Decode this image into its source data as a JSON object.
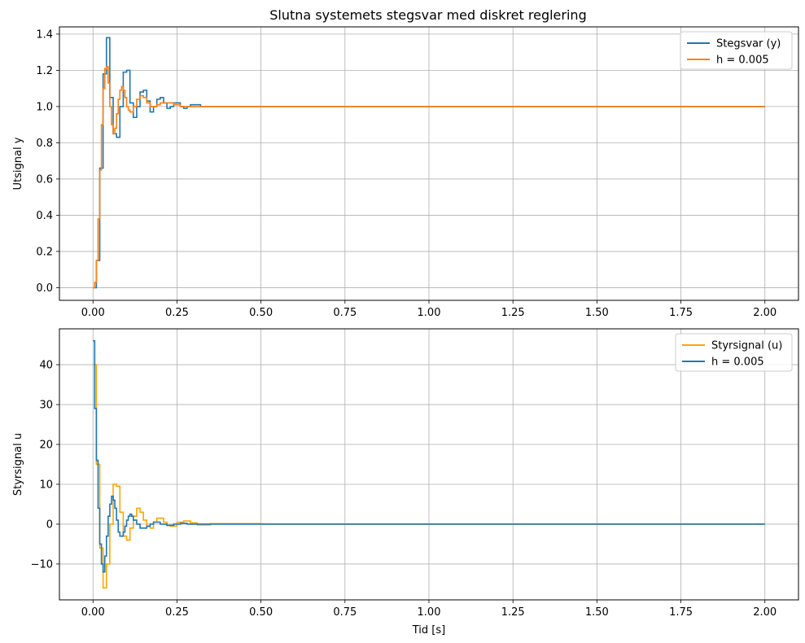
{
  "figure": {
    "title": "Slutna systemets stegsvar med diskret reglering"
  },
  "chart_data": [
    {
      "type": "line",
      "drawstyle": "steps",
      "title": "Slutna systemets stegsvar med diskret reglering",
      "xlabel": "",
      "ylabel": "Utsignal y",
      "xlim": [
        -0.1,
        2.1
      ],
      "ylim": [
        -0.07,
        1.44
      ],
      "xticks": [
        "0.00",
        "0.25",
        "0.50",
        "0.75",
        "1.00",
        "1.25",
        "1.50",
        "1.75",
        "2.00"
      ],
      "yticks": [
        "0.0",
        "0.2",
        "0.4",
        "0.6",
        "0.8",
        "1.0",
        "1.2",
        "1.4"
      ],
      "grid": true,
      "legend_position": "top-right",
      "series": [
        {
          "name": "Stegsvar (y)",
          "color": "#1f77b4",
          "x": [
            0,
            0.01,
            0.02,
            0.03,
            0.04,
            0.05,
            0.06,
            0.07,
            0.08,
            0.09,
            0.1,
            0.11,
            0.12,
            0.13,
            0.14,
            0.15,
            0.16,
            0.17,
            0.18,
            0.19,
            0.2,
            0.21,
            0.22,
            0.23,
            0.24,
            0.25,
            0.26,
            0.27,
            0.28,
            0.29,
            0.3,
            0.32,
            0.34,
            0.36,
            0.4,
            0.45,
            0.5,
            2.0
          ],
          "y": [
            0.0,
            0.15,
            0.66,
            1.18,
            1.38,
            1.05,
            0.85,
            0.83,
            1.0,
            1.19,
            1.2,
            1.02,
            0.94,
            1.0,
            1.08,
            1.09,
            1.03,
            0.97,
            1.0,
            1.04,
            1.05,
            1.02,
            0.99,
            1.0,
            1.02,
            1.02,
            1.0,
            0.99,
            1.0,
            1.01,
            1.01,
            1.0,
            1.0,
            1.0,
            1.0,
            1.0,
            1.0,
            1.0
          ]
        },
        {
          "name": "h = 0.005",
          "color": "#ff7f0e",
          "x": [
            0,
            0.005,
            0.01,
            0.015,
            0.02,
            0.025,
            0.03,
            0.035,
            0.04,
            0.045,
            0.05,
            0.055,
            0.06,
            0.065,
            0.07,
            0.075,
            0.08,
            0.085,
            0.09,
            0.095,
            0.1,
            0.105,
            0.11,
            0.12,
            0.13,
            0.14,
            0.15,
            0.16,
            0.17,
            0.18,
            0.19,
            0.2,
            0.22,
            0.24,
            0.26,
            0.28,
            0.3,
            0.35,
            0.4,
            0.5,
            2.0
          ],
          "y": [
            0.0,
            0.03,
            0.15,
            0.38,
            0.65,
            0.9,
            1.1,
            1.21,
            1.22,
            1.13,
            1.0,
            0.9,
            0.85,
            0.88,
            0.96,
            1.04,
            1.09,
            1.11,
            1.09,
            1.05,
            1.0,
            0.98,
            0.97,
            1.0,
            1.04,
            1.06,
            1.05,
            1.02,
            1.0,
            1.0,
            1.01,
            1.02,
            1.02,
            1.01,
            1.0,
            1.0,
            1.0,
            1.0,
            1.0,
            1.0,
            1.0
          ]
        }
      ]
    },
    {
      "type": "line",
      "drawstyle": "steps",
      "title": "",
      "xlabel": "Tid [s]",
      "ylabel": "Styrsignal u",
      "xlim": [
        -0.1,
        2.1
      ],
      "ylim": [
        -19,
        49
      ],
      "xticks": [
        "0.00",
        "0.25",
        "0.50",
        "0.75",
        "1.00",
        "1.25",
        "1.50",
        "1.75",
        "2.00"
      ],
      "yticks": [
        "−10",
        "0",
        "10",
        "20",
        "30",
        "40"
      ],
      "grid": true,
      "legend_position": "top-right",
      "series": [
        {
          "name": "Styrsignal (u)",
          "color": "#ffa500",
          "x": [
            0,
            0.01,
            0.02,
            0.03,
            0.04,
            0.05,
            0.06,
            0.07,
            0.08,
            0.09,
            0.1,
            0.11,
            0.12,
            0.13,
            0.14,
            0.15,
            0.16,
            0.17,
            0.18,
            0.19,
            0.2,
            0.21,
            0.22,
            0.23,
            0.25,
            0.27,
            0.29,
            0.31,
            0.35,
            0.4,
            0.45,
            0.5,
            2.0
          ],
          "y": [
            40,
            15,
            -6,
            -16,
            -10,
            0,
            10,
            9.5,
            3,
            -3,
            -4,
            -1,
            2,
            4,
            3,
            1,
            -0.5,
            -1,
            0.5,
            1.5,
            1.5,
            0.5,
            -0.3,
            -0.5,
            0.5,
            0.8,
            0.3,
            -0.2,
            0.1,
            0.1,
            0.1,
            0,
            0
          ]
        },
        {
          "name": "h = 0.005",
          "color": "#1f77b4",
          "x": [
            0,
            0.005,
            0.01,
            0.015,
            0.02,
            0.025,
            0.03,
            0.035,
            0.04,
            0.045,
            0.05,
            0.055,
            0.06,
            0.065,
            0.07,
            0.075,
            0.08,
            0.085,
            0.09,
            0.095,
            0.1,
            0.105,
            0.11,
            0.115,
            0.12,
            0.13,
            0.14,
            0.15,
            0.16,
            0.17,
            0.18,
            0.19,
            0.2,
            0.22,
            0.24,
            0.26,
            0.28,
            0.3,
            0.35,
            0.4,
            0.5,
            2.0
          ],
          "y": [
            46,
            29,
            16,
            4,
            -5,
            -10,
            -12,
            -8,
            -3,
            2,
            5,
            7,
            6,
            4,
            1,
            -2,
            -3,
            -3,
            -2,
            -0.5,
            1,
            2,
            2.5,
            2,
            1,
            0,
            -1,
            -1,
            -0.5,
            0,
            0.5,
            0.5,
            0,
            -0.3,
            0,
            0.2,
            0,
            0,
            0,
            0,
            0,
            0
          ]
        }
      ]
    }
  ]
}
